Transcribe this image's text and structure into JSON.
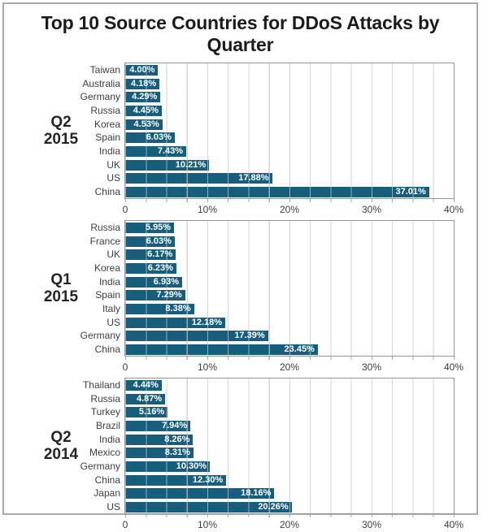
{
  "title": "Top 10 Source Countries for DDoS Attacks by Quarter",
  "colors": {
    "bar": "#175E7D",
    "gridline": "#A7A9AC",
    "plot_border": "#939598",
    "title_text": "#1B1B1D",
    "label_text": "#3D3D3F"
  },
  "axis": {
    "ticks": [
      "0",
      "10%",
      "20%",
      "30%",
      "40%"
    ],
    "min": 0,
    "max": 40,
    "gridline_step_pct": 2.5
  },
  "chart_data": [
    {
      "type": "bar",
      "orientation": "horizontal",
      "group": "Q2 2015",
      "group_lines": [
        "Q2",
        "2015"
      ],
      "categories": [
        "Taiwan",
        "Australia",
        "Germany",
        "Russia",
        "Korea",
        "Spain",
        "India",
        "UK",
        "US",
        "China"
      ],
      "values": [
        4.0,
        4.18,
        4.29,
        4.45,
        4.53,
        6.03,
        7.43,
        10.21,
        17.88,
        37.01
      ],
      "labels": [
        "4.00%",
        "4.18%",
        "4.29%",
        "4.45%",
        "4.53%",
        "6.03%",
        "7.43%",
        "10.21%",
        "17.88%",
        "37.01%"
      ],
      "xlim": [
        0,
        40
      ],
      "x_ticks": [
        "0",
        "10%",
        "20%",
        "30%",
        "40%"
      ],
      "grid": true
    },
    {
      "type": "bar",
      "orientation": "horizontal",
      "group": "Q1 2015",
      "group_lines": [
        "Q1",
        "2015"
      ],
      "categories": [
        "Russia",
        "France",
        "UK",
        "Korea",
        "India",
        "Spain",
        "Italy",
        "US",
        "Germany",
        "China"
      ],
      "values": [
        5.95,
        6.03,
        6.17,
        6.23,
        6.93,
        7.29,
        8.38,
        12.18,
        17.39,
        23.45
      ],
      "labels": [
        "5.95%",
        "6.03%",
        "6.17%",
        "6.23%",
        "6.93%",
        "7.29%",
        "8.38%",
        "12.18%",
        "17.39%",
        "23.45%"
      ],
      "xlim": [
        0,
        40
      ],
      "x_ticks": [
        "0",
        "10%",
        "20%",
        "30%",
        "40%"
      ],
      "grid": true
    },
    {
      "type": "bar",
      "orientation": "horizontal",
      "group": "Q2 2014",
      "group_lines": [
        "Q2",
        "2014"
      ],
      "categories": [
        "Thailand",
        "Russia",
        "Turkey",
        "Brazil",
        "India",
        "Mexico",
        "Germany",
        "China",
        "Japan",
        "US"
      ],
      "values": [
        4.44,
        4.87,
        5.16,
        7.94,
        8.26,
        8.31,
        10.3,
        12.3,
        18.16,
        20.26
      ],
      "labels": [
        "4.44%",
        "4.87%",
        "5.16%",
        "7.94%",
        "8.26%",
        "8.31%",
        "10.30%",
        "12.30%",
        "18.16%",
        "20.26%"
      ],
      "xlim": [
        0,
        40
      ],
      "x_ticks": [
        "0",
        "10%",
        "20%",
        "30%",
        "40%"
      ],
      "grid": true
    }
  ]
}
